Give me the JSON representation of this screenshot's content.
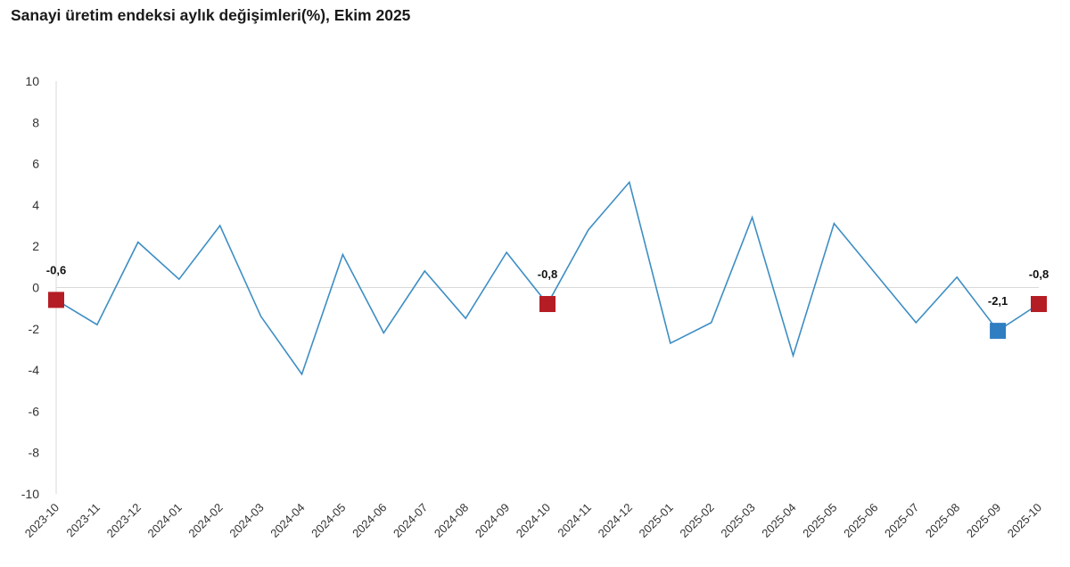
{
  "chart_data": {
    "type": "line",
    "title": "Sanayi üretim endeksi aylık değişimleri(%), Ekim 2025",
    "xlabel": "",
    "ylabel": "",
    "ylim": [
      -10,
      10
    ],
    "yticks": [
      "10",
      "8",
      "6",
      "4",
      "2",
      "0",
      "-2",
      "-4",
      "-6",
      "-8",
      "-10"
    ],
    "categories": [
      "2023-10",
      "2023-11",
      "2023-12",
      "2024-01",
      "2024-02",
      "2024-03",
      "2024-04",
      "2024-05",
      "2024-06",
      "2024-07",
      "2024-08",
      "2024-09",
      "2024-10",
      "2024-11",
      "2024-12",
      "2025-01",
      "2025-02",
      "2025-03",
      "2025-04",
      "2025-05",
      "2025-06",
      "2025-07",
      "2025-08",
      "2025-09",
      "2025-10"
    ],
    "series": [
      {
        "values": [
          -0.6,
          -1.8,
          2.2,
          0.4,
          3.0,
          -1.4,
          -4.2,
          1.6,
          -2.2,
          0.8,
          -1.5,
          1.7,
          -0.8,
          2.8,
          5.1,
          -2.7,
          -1.7,
          3.4,
          -3.3,
          3.1,
          0.7,
          -1.7,
          0.5,
          -2.1,
          -0.8
        ]
      }
    ],
    "highlighted_points": [
      {
        "category": "2023-10",
        "label": "-0,6",
        "color": "#b51d24"
      },
      {
        "category": "2024-10",
        "label": "-0,8",
        "color": "#b51d24"
      },
      {
        "category": "2025-09",
        "label": "-2,1",
        "color": "#2f7ec1"
      },
      {
        "category": "2025-10",
        "label": "-0,8",
        "color": "#b51d24"
      }
    ],
    "colors": {
      "line": "#3d8ec4",
      "axis": "#d9d9d9"
    },
    "grid": false,
    "legend": "none"
  }
}
